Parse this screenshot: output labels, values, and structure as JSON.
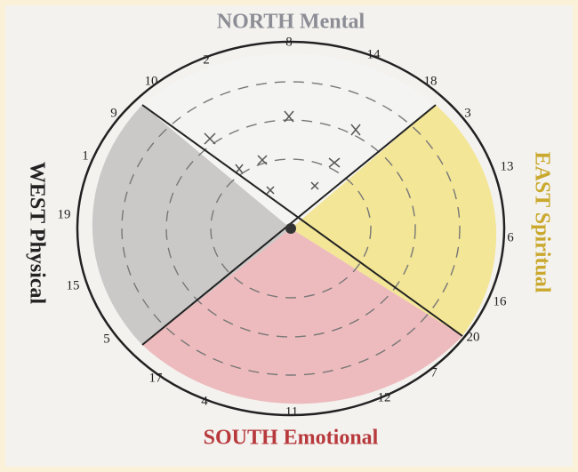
{
  "titles": {
    "north": "NORTH Mental",
    "east": "EAST Spiritual",
    "south": "SOUTH Emotional",
    "west": "WEST Physical"
  },
  "wheel_numbers": [
    8,
    2,
    14,
    10,
    18,
    9,
    3,
    1,
    13,
    19,
    6,
    15,
    16,
    5,
    20,
    17,
    7,
    4,
    12,
    11
  ]
}
